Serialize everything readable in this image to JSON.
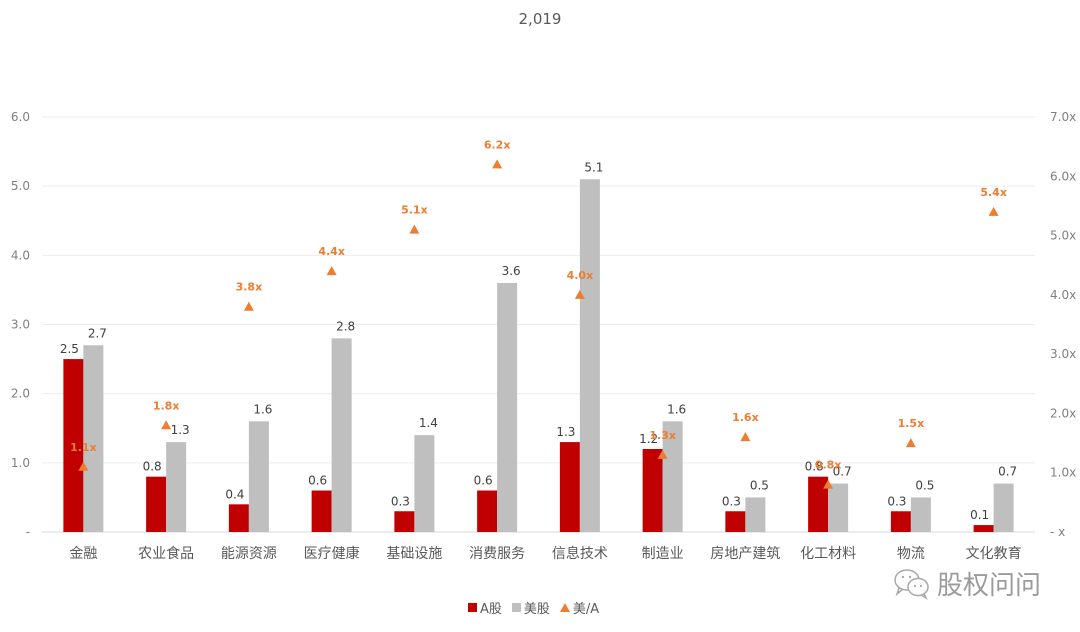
{
  "chart_data": {
    "type": "bar",
    "title": "2,019",
    "categories": [
      "金融",
      "农业食品",
      "能源资源",
      "医疗健康",
      "基础设施",
      "消费服务",
      "信息技术",
      "制造业",
      "房地产建筑",
      "化工材料",
      "物流",
      "文化教育"
    ],
    "series": [
      {
        "name": "A股",
        "type": "bar",
        "axis": "left",
        "color": "#C00000",
        "values": [
          2.5,
          0.8,
          0.4,
          0.6,
          0.3,
          0.6,
          1.3,
          1.2,
          0.3,
          0.8,
          0.3,
          0.1
        ],
        "labels": [
          "2.5",
          "0.8",
          "0.4",
          "0.6",
          "0.3",
          "0.6",
          "1.3",
          "1.2",
          "0.3",
          "0.8",
          "0.3",
          "0.1"
        ]
      },
      {
        "name": "美股",
        "type": "bar",
        "axis": "left",
        "color": "#BFBFBF",
        "values": [
          2.7,
          1.3,
          1.6,
          2.8,
          1.4,
          3.6,
          5.1,
          1.6,
          0.5,
          0.7,
          0.5,
          0.7
        ],
        "labels": [
          "2.7",
          "1.3",
          "1.6",
          "2.8",
          "1.4",
          "3.6",
          "5.1",
          "1.6",
          "0.5",
          "0.7",
          "0.5",
          "0.7"
        ]
      },
      {
        "name": "美/A",
        "type": "scatter",
        "marker": "triangle",
        "axis": "right",
        "color": "#ED7D31",
        "values": [
          1.1,
          1.8,
          3.8,
          4.4,
          5.1,
          6.2,
          4.0,
          1.3,
          1.6,
          0.8,
          1.5,
          5.4
        ],
        "labels": [
          "1.1x",
          "1.8x",
          "3.8x",
          "4.4x",
          "5.1x",
          "6.2x",
          "4.0x",
          "1.3x",
          "1.6x",
          "0.8x",
          "1.5x",
          "5.4x"
        ]
      }
    ],
    "left_axis": {
      "ylim": [
        0,
        6
      ],
      "ticks": [
        "-",
        "1.0",
        "2.0",
        "3.0",
        "4.0",
        "5.0",
        "6.0"
      ]
    },
    "right_axis": {
      "ylim": [
        0,
        7
      ],
      "ticks": [
        "- x",
        "1.0x",
        "2.0x",
        "3.0x",
        "4.0x",
        "5.0x",
        "6.0x",
        "7.0x"
      ]
    },
    "xlabel": "",
    "ylabel": "",
    "grid": true,
    "legend_position": "bottom"
  },
  "legend": [
    {
      "label": "A股",
      "color": "#C00000",
      "shape": "square"
    },
    {
      "label": "美股",
      "color": "#BFBFBF",
      "shape": "square"
    },
    {
      "label": "美/A",
      "color": "#ED7D31",
      "shape": "triangle"
    }
  ],
  "watermark": {
    "text": "股权问问",
    "icon": "wechat-icon"
  }
}
